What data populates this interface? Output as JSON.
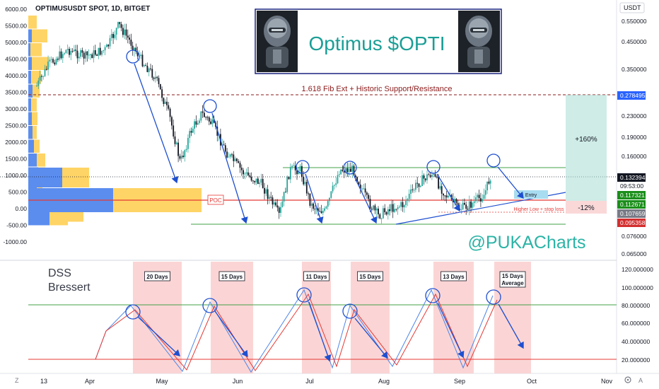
{
  "header": {
    "symbol": "OPTIMUSUSDT SPOT, 1D, BITGET",
    "currency": "USDT"
  },
  "banner": {
    "title": "Optimus $OPTI",
    "bg_color": "#ffffff",
    "border_color": "#1a237e",
    "text_color": "#1a9e96"
  },
  "watermark": "@PUKACharts",
  "annotations": {
    "fib": "1.618 Fib Ext + Historic Support/Resistance",
    "poc": "POC",
    "entry": "Entry",
    "higher_low": "Higher Low + stop loss",
    "gain": "+160%",
    "loss": "-12%",
    "indicator": "DSS",
    "indicator2": "Bressert"
  },
  "chart_data": {
    "type": "candlestick",
    "title": "OPTIMUSUSDT SPOT, 1D, BITGET",
    "x_ticks": [
      "13",
      "Apr",
      "May",
      "Jun",
      "Jul",
      "Aug",
      "Sep",
      "Oct",
      "Nov"
    ],
    "y_right_ticks": [
      "0.550000",
      "0.450000",
      "0.350000",
      "0.230000",
      "0.190000",
      "0.160000",
      "0.076000",
      "0.065000"
    ],
    "price_labels": [
      {
        "value": "0.278495",
        "color": "#2962ff"
      },
      {
        "value": "0.132394",
        "color": "#131722"
      },
      {
        "value": "09:53:00",
        "color": "#131722"
      },
      {
        "value": "0.117321",
        "color": "#1b8f1b"
      },
      {
        "value": "0.112671",
        "color": "#1b8f1b"
      },
      {
        "value": "0.107659",
        "color": "#787b86"
      },
      {
        "value": "0.095358",
        "color": "#d32f2f"
      }
    ],
    "y_left_ticks": [
      "6000.00",
      "5500.00",
      "5000.00",
      "4500.00",
      "4000.00",
      "3500.00",
      "3000.00",
      "2500.00",
      "2000.00",
      "1500.00",
      "1000.00",
      "500.00",
      "0.00",
      "-500.00",
      "-1000.00"
    ],
    "volume_profile": [
      {
        "blue": 0,
        "yellow": 12
      },
      {
        "blue": 5,
        "yellow": 22
      },
      {
        "blue": 3,
        "yellow": 16
      },
      {
        "blue": 5,
        "yellow": 24
      },
      {
        "blue": 4,
        "yellow": 14
      },
      {
        "blue": 6,
        "yellow": 10
      },
      {
        "blue": 4,
        "yellow": 8
      },
      {
        "blue": 5,
        "yellow": 8
      },
      {
        "blue": 6,
        "yellow": 6
      },
      {
        "blue": 8,
        "yellow": 8
      },
      {
        "blue": 12,
        "yellow": 12
      },
      {
        "blue": 14,
        "yellow": 10
      },
      {
        "blue": 12,
        "yellow": 8
      },
      {
        "blue": 20,
        "yellow": 10
      },
      {
        "blue": 40,
        "yellow": 38
      },
      {
        "blue": 120,
        "yellow": 125
      },
      {
        "blue": 30,
        "yellow": 26
      }
    ],
    "indicator_ticks": [
      "120.000000",
      "100.000000",
      "80.000000",
      "60.000000",
      "40.000000",
      "20.000000"
    ],
    "cycle_labels": [
      "20 Days",
      "15 Days",
      "11 Days",
      "15 Days",
      "13 Days",
      "15 Days Average"
    ],
    "colors": {
      "up": "#26a69a",
      "down": "#131722",
      "arrow": "#1e4fd0",
      "red": "#e53935",
      "green": "#43a047"
    }
  }
}
